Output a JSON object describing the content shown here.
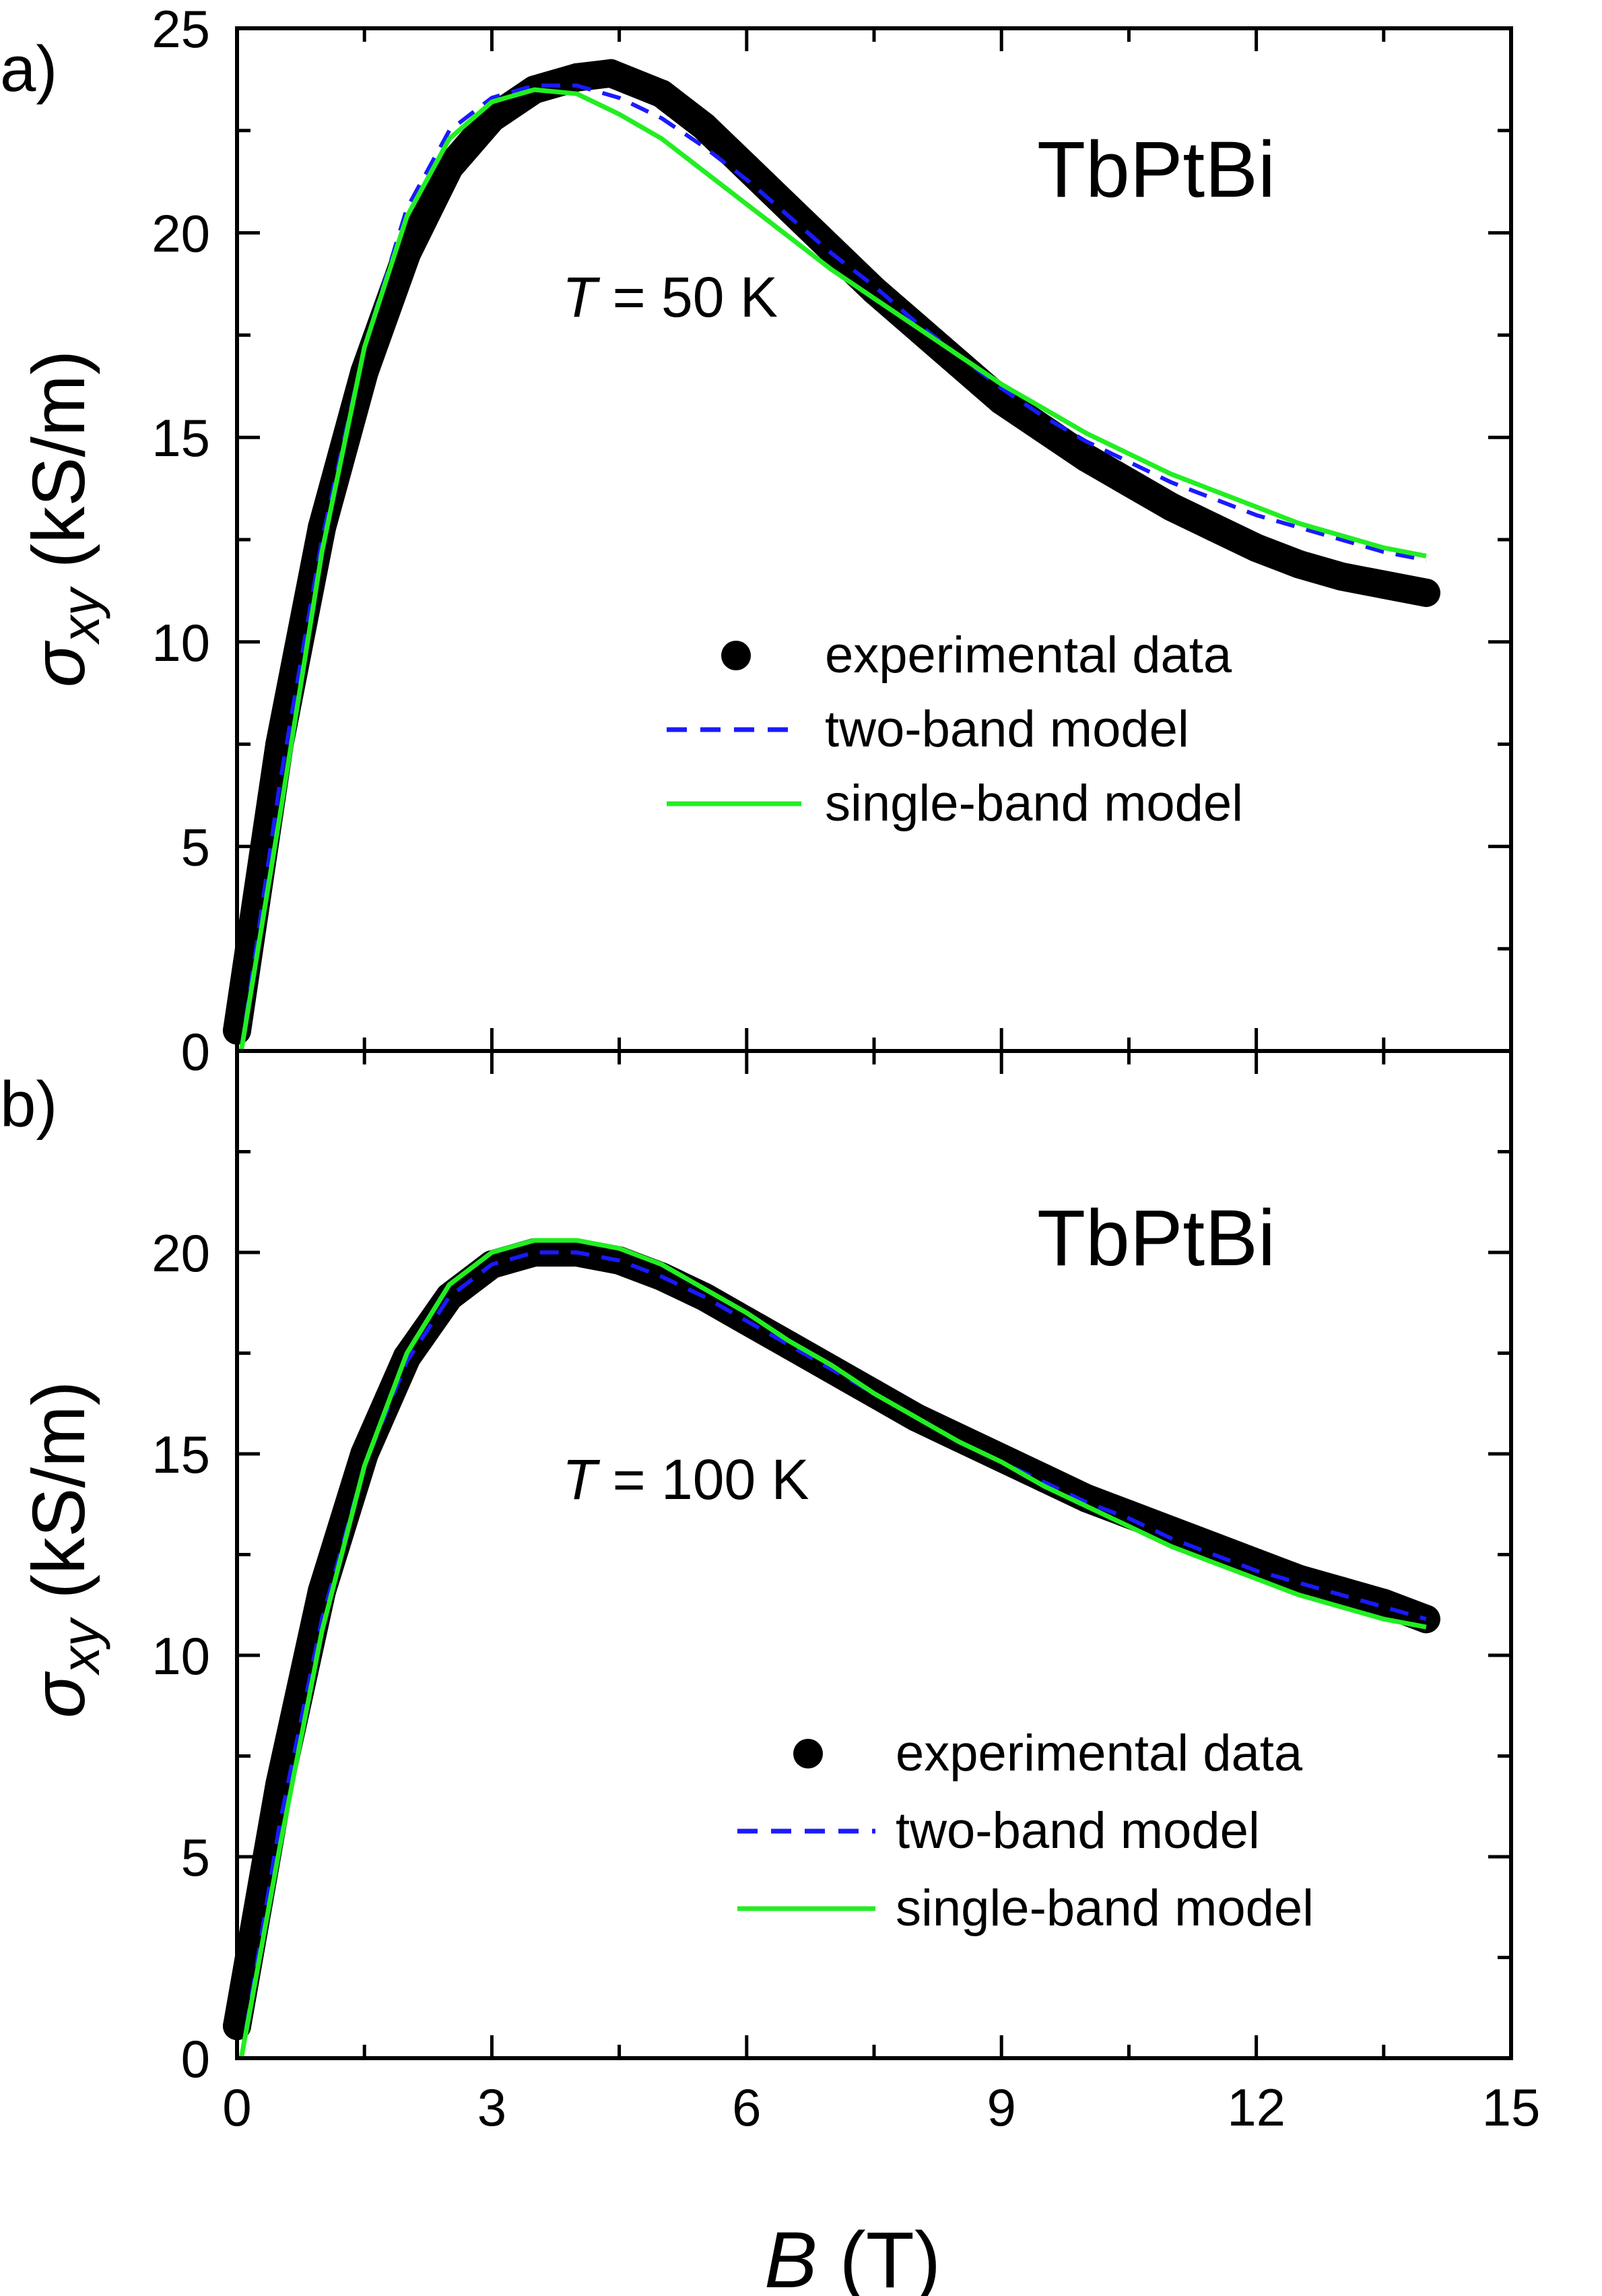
{
  "chart_data": [
    {
      "type": "line",
      "panel_label": "a)",
      "title": "TbPtBi",
      "annotation": {
        "italic": "T",
        "text": " = 50 K"
      },
      "xlabel": {
        "italic": "B",
        "text": " (T)"
      },
      "ylabel": {
        "symbol": "σ",
        "subscript": "xy",
        "unit": " (kS/m)"
      },
      "xlim": [
        0,
        15
      ],
      "ylim": [
        0,
        25
      ],
      "x_ticks": [
        0,
        3,
        6,
        9,
        12,
        15
      ],
      "y_ticks": [
        0,
        5,
        10,
        15,
        20,
        25
      ],
      "y_tick_labels": [
        "0",
        "5",
        "10",
        "15",
        "20",
        "25"
      ],
      "legend": [
        "experimental data",
        "two-band model",
        "single-band model"
      ],
      "series": [
        {
          "name": "experimental data",
          "style": "markers",
          "color": "#000000",
          "x": [
            0,
            0.5,
            1,
            1.5,
            2,
            2.5,
            3,
            3.5,
            4,
            4.4,
            5,
            5.5,
            6,
            6.5,
            7,
            7.5,
            8,
            8.5,
            9,
            9.5,
            10,
            10.5,
            11,
            11.5,
            12,
            12.5,
            13,
            13.5,
            14
          ],
          "y": [
            0.5,
            7.5,
            12.8,
            16.6,
            19.5,
            21.6,
            22.8,
            23.5,
            23.8,
            23.9,
            23.4,
            22.6,
            21.6,
            20.6,
            19.6,
            18.6,
            17.7,
            16.8,
            15.9,
            15.2,
            14.5,
            13.9,
            13.3,
            12.8,
            12.3,
            11.9,
            11.6,
            11.4,
            11.2
          ]
        },
        {
          "name": "two-band model",
          "style": "dashed",
          "color": "#1a1aff",
          "x": [
            0.05,
            0.5,
            1,
            1.5,
            2,
            2.5,
            3,
            3.5,
            4,
            4.5,
            5,
            5.5,
            6,
            6.5,
            7,
            7.5,
            8,
            8.5,
            9,
            9.5,
            10,
            10.5,
            11,
            11.5,
            12,
            12.5,
            13,
            13.5,
            14
          ],
          "y": [
            0,
            6.5,
            12.5,
            17.2,
            20.6,
            22.5,
            23.3,
            23.6,
            23.6,
            23.3,
            22.8,
            22.1,
            21.3,
            20.4,
            19.5,
            18.7,
            17.8,
            17,
            16.2,
            15.5,
            14.9,
            14.4,
            13.9,
            13.5,
            13.1,
            12.8,
            12.5,
            12.2,
            12.0
          ]
        },
        {
          "name": "single-band model",
          "style": "solid",
          "color": "#22ee22",
          "x": [
            0.05,
            0.5,
            1,
            1.5,
            2,
            2.5,
            3,
            3.5,
            4,
            4.5,
            5,
            5.5,
            6,
            6.5,
            7,
            7.5,
            8,
            8.5,
            9,
            9.5,
            10,
            10.5,
            11,
            11.5,
            12,
            12.5,
            13,
            13.5,
            14
          ],
          "y": [
            0,
            5.7,
            12.2,
            17.2,
            20.4,
            22.3,
            23.2,
            23.5,
            23.4,
            22.9,
            22.3,
            21.5,
            20.7,
            19.9,
            19.1,
            18.4,
            17.7,
            17,
            16.3,
            15.7,
            15.1,
            14.6,
            14.1,
            13.7,
            13.3,
            12.9,
            12.6,
            12.3,
            12.1
          ]
        }
      ]
    },
    {
      "type": "line",
      "panel_label": "b)",
      "title": "TbPtBi",
      "annotation": {
        "italic": "T",
        "text": " = 100 K"
      },
      "xlabel": {
        "italic": "B",
        "text": " (T)"
      },
      "ylabel": {
        "symbol": "σ",
        "subscript": "xy",
        "unit": " (kS/m)"
      },
      "xlim": [
        0,
        15
      ],
      "ylim": [
        0,
        25
      ],
      "x_ticks": [
        0,
        3,
        6,
        9,
        12,
        15
      ],
      "x_tick_labels": [
        "0",
        "3",
        "6",
        "9",
        "12",
        "15"
      ],
      "y_ticks": [
        0,
        5,
        10,
        15,
        20
      ],
      "y_tick_labels": [
        "0",
        "5",
        "10",
        "15",
        "20"
      ],
      "legend": [
        "experimental data",
        "two-band model",
        "single-band model"
      ],
      "series": [
        {
          "name": "experimental data",
          "style": "markers",
          "color": "#000000",
          "x": [
            0,
            0.5,
            1,
            1.5,
            2,
            2.5,
            3,
            3.5,
            4,
            4.5,
            5,
            5.5,
            6,
            6.5,
            7,
            7.5,
            8,
            8.5,
            9,
            9.5,
            10,
            10.5,
            11,
            11.5,
            12,
            12.5,
            13,
            13.5,
            14
          ],
          "y": [
            0.8,
            6.8,
            11.6,
            15.0,
            17.4,
            18.9,
            19.7,
            20.0,
            20.0,
            19.8,
            19.4,
            18.9,
            18.3,
            17.7,
            17.1,
            16.5,
            15.9,
            15.4,
            14.9,
            14.4,
            13.9,
            13.5,
            13.1,
            12.7,
            12.3,
            11.9,
            11.6,
            11.3,
            10.9
          ]
        },
        {
          "name": "two-band model",
          "style": "dashed",
          "color": "#1a1aff",
          "x": [
            0.05,
            0.5,
            1,
            1.5,
            2,
            2.5,
            3,
            3.5,
            4,
            4.5,
            5,
            5.5,
            6,
            6.5,
            7,
            7.5,
            8,
            8.5,
            9,
            9.5,
            10,
            10.5,
            11,
            11.5,
            12,
            12.5,
            13,
            13.5,
            14
          ],
          "y": [
            0,
            5.8,
            10.9,
            14.7,
            17.3,
            18.9,
            19.7,
            20.0,
            20.0,
            19.8,
            19.4,
            18.9,
            18.3,
            17.7,
            17.1,
            16.5,
            15.9,
            15.3,
            14.8,
            14.3,
            13.8,
            13.4,
            12.9,
            12.5,
            12.1,
            11.8,
            11.5,
            11.2,
            10.9
          ]
        },
        {
          "name": "single-band model",
          "style": "solid",
          "color": "#22ee22",
          "x": [
            0.05,
            0.5,
            1,
            1.5,
            2,
            2.5,
            3,
            3.5,
            4,
            4.5,
            5,
            5.5,
            6,
            6.5,
            7,
            7.5,
            8,
            8.5,
            9,
            9.5,
            10,
            10.5,
            11,
            11.5,
            12,
            12.5,
            13,
            13.5,
            14
          ],
          "y": [
            0,
            5.2,
            10.6,
            14.7,
            17.5,
            19.2,
            20.0,
            20.3,
            20.3,
            20.1,
            19.7,
            19.1,
            18.5,
            17.8,
            17.2,
            16.5,
            15.9,
            15.3,
            14.8,
            14.2,
            13.7,
            13.2,
            12.7,
            12.3,
            11.9,
            11.5,
            11.2,
            10.9,
            10.7
          ]
        }
      ]
    }
  ]
}
